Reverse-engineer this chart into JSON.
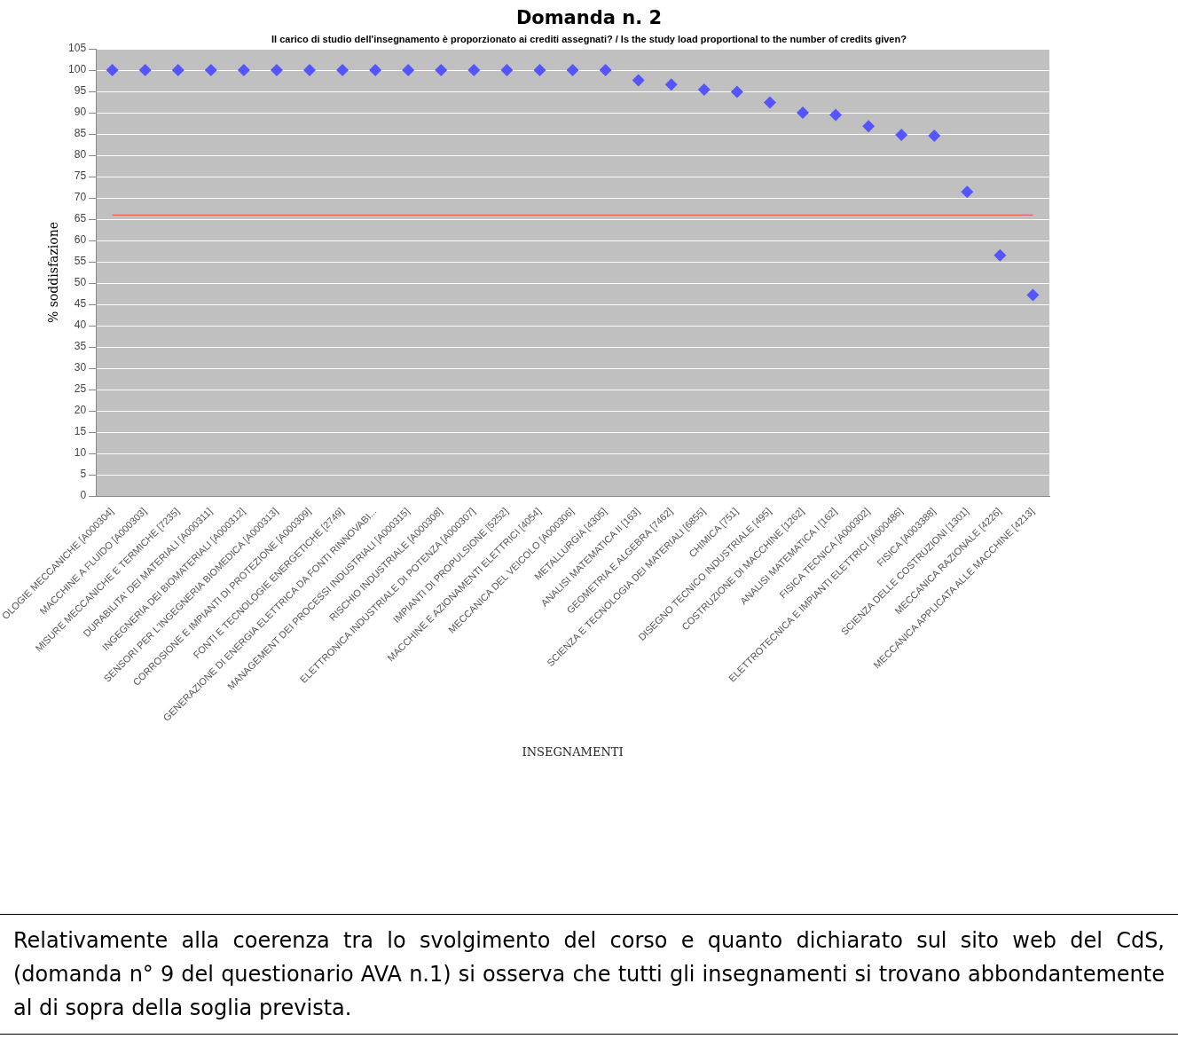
{
  "chart_data": {
    "type": "scatter",
    "title": "Domanda n. 2",
    "subtitle": "Il carico di studio dell'insegnamento è proporzionato ai crediti assegnati? / Is the study load proportional to the number of credits given?",
    "xlabel": "INSEGNAMENTI",
    "ylabel": "% soddisfazione",
    "categories": [
      "OLOGIE MECCANICHE [A000304]",
      "MACCHINE A FLUIDO [A000303]",
      "MISURE MECCANICHE E TERMICHE [7235]",
      "DURABILITA' DEI MATERIALI [A000311]",
      "INGEGNERIA DEI BIOMATERIALI [A000312]",
      "SENSORI PER L'INGEGNERIA BIOMEDICA [A000313]",
      "CORROSIONE E IMPIANTI DI PROTEZIONE [A000309]",
      "FONTI E TECNOLOGIE ENERGETICHE [2749]",
      "GENERAZIONE DI ENERGIA ELETTRICA DA FONTI RINNOVABI...",
      "MANAGEMENT DEI PROCESSI INDUSTRIALI [A000315]",
      "RISCHIO INDUSTRIALE [A000308]",
      "ELETTRONICA INDUSTRIALE DI POTENZA [A000307]",
      "IMPIANTI DI PROPULSIONE [5252]",
      "MACCHINE E AZIONAMENTI ELETTRICI [4054]",
      "MECCANICA DEL VEICOLO [A000306]",
      "METALLURGIA [4305]",
      "ANALISI MATEMATICA II [163]",
      "GEOMETRIA E ALGEBRA [7462]",
      "SCIENZA E TECNOLOGIA DEI MATERIALI [6855]",
      "CHIMICA [751]",
      "DISEGNO TECNICO INDUSTRIALE [495]",
      "COSTRUZIONE DI MACCHINE [1262]",
      "ANALISI MATEMATICA I [162]",
      "FISICA TECNICA [A000302]",
      "ELETTROTECNICA E IMPIANTI ELETTRICI [A000486]",
      "FISICA [A003388]",
      "SCIENZA DELLE COSTRUZIONI [1301]",
      "MECCANICA RAZIONALE [4226]",
      "MECCANICA APPLICATA ALLE MACCHINE [4213]"
    ],
    "values": [
      100,
      100,
      100,
      100,
      100,
      100,
      100,
      100,
      100,
      100,
      100,
      100,
      100,
      100,
      100,
      100,
      97.6,
      96.6,
      95.4,
      94.9,
      92.4,
      90.0,
      89.5,
      86.8,
      84.8,
      84.6,
      71.4,
      56.5,
      47.2
    ],
    "color": "#5555ff",
    "marker": "diamond",
    "ylim": [
      0,
      105
    ],
    "yticks": [
      0,
      5,
      10,
      15,
      20,
      25,
      30,
      35,
      40,
      45,
      50,
      55,
      60,
      65,
      70,
      75,
      80,
      85,
      90,
      95,
      100,
      105
    ],
    "grid": "y",
    "ref_lines": [
      {
        "axis": "y",
        "value": 66,
        "color": "#ff4040"
      }
    ],
    "annotations": [
      "Relativamente alla coerenza tra lo svolgimento del corso e quanto dichiarato sul sito web del CdS, (domanda n° 9 del questionario AVA n.1) si osserva che tutti gli insegnamenti si trovano abbondantemente al di sopra della soglia prevista."
    ]
  }
}
